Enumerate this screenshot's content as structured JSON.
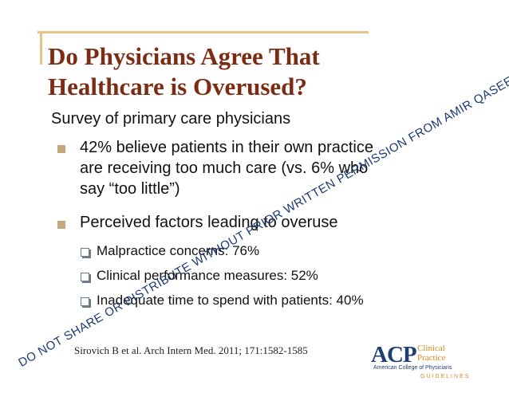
{
  "slide": {
    "title_line1": "Do Physicians Agree That",
    "title_line2": "Healthcare is Overused?",
    "subtitle": "Survey of primary care physicians",
    "bullets": [
      {
        "lines": [
          "42% believe patients in their own practice",
          "are receiving too much care (vs. 6% who",
          "say “too little”)"
        ]
      },
      {
        "lines": [
          "Perceived factors leading to overuse"
        ]
      }
    ],
    "subbullets": [
      "Malpractice concerns:  76%",
      "Clinical performance measures:  52%",
      "Inadequate time to spend with patients:  40%"
    ],
    "citation": "Sirovich B et al. Arch Intern Med. 2011; 171:1582-1585"
  },
  "logo": {
    "acp": "ACP",
    "clinical_practice": "Clinical Practice",
    "college": "American College of Physicians",
    "guidelines": "GUIDELINES"
  },
  "watermark": "DO NOT SHARE OR DISTRIBUTE WITHOUT PRIOR WRITTEN PERMISSION FROM AMIR QASEEM",
  "colors": {
    "title": "#7b2c12",
    "rule": "#e6c489",
    "bullet": "#c4a87b",
    "watermark": "#1b3a73"
  }
}
